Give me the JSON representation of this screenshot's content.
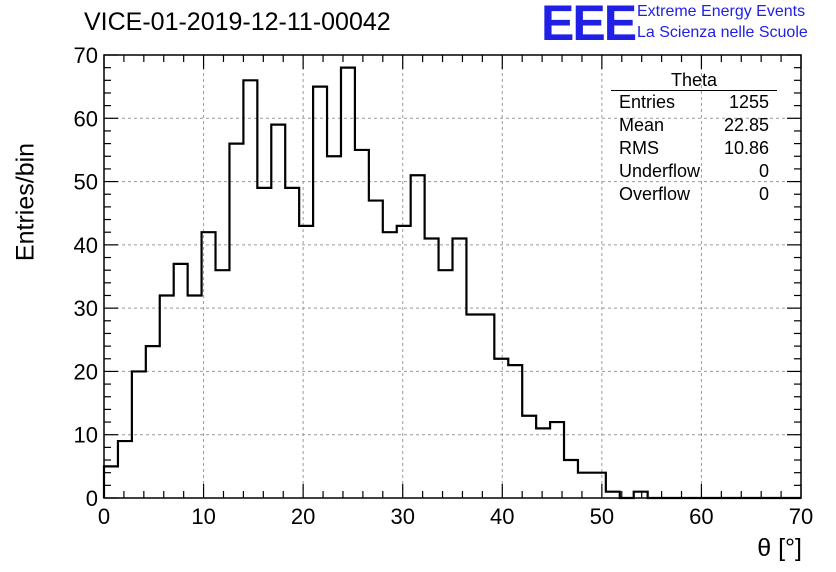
{
  "header": {
    "title": "VICE-01-2019-12-11-00042",
    "logo_mark": "EEE",
    "logo_line1": "Extreme Energy Events",
    "logo_line2": "La Scienza nelle Scuole",
    "logo_color": "#1f1fe6"
  },
  "stats_box": {
    "title": "Theta",
    "rows": [
      {
        "label": "Entries",
        "value": "1255"
      },
      {
        "label": "Mean",
        "value": "22.85"
      },
      {
        "label": "RMS",
        "value": "10.86"
      },
      {
        "label": "Underflow",
        "value": "0"
      },
      {
        "label": "Overflow",
        "value": "0"
      }
    ]
  },
  "chart_data": {
    "type": "bar",
    "style": "step-histogram",
    "xlabel": "θ [°]",
    "ylabel": "Entries/bin",
    "xlim": [
      0,
      70
    ],
    "ylim": [
      0,
      70
    ],
    "grid": true,
    "bin_width": 1.4,
    "x_ticks": [
      0,
      10,
      20,
      30,
      40,
      50,
      60,
      70
    ],
    "y_ticks": [
      0,
      10,
      20,
      30,
      40,
      50,
      60,
      70
    ],
    "values": [
      5,
      9,
      20,
      24,
      32,
      37,
      32,
      42,
      36,
      56,
      66,
      49,
      59,
      49,
      43,
      65,
      54,
      68,
      55,
      47,
      42,
      43,
      51,
      41,
      36,
      41,
      29,
      29,
      22,
      21,
      13,
      11,
      12,
      6,
      4,
      4,
      1,
      0,
      1,
      0,
      0,
      0,
      0,
      0,
      0,
      0,
      0,
      0,
      0,
      0
    ]
  }
}
